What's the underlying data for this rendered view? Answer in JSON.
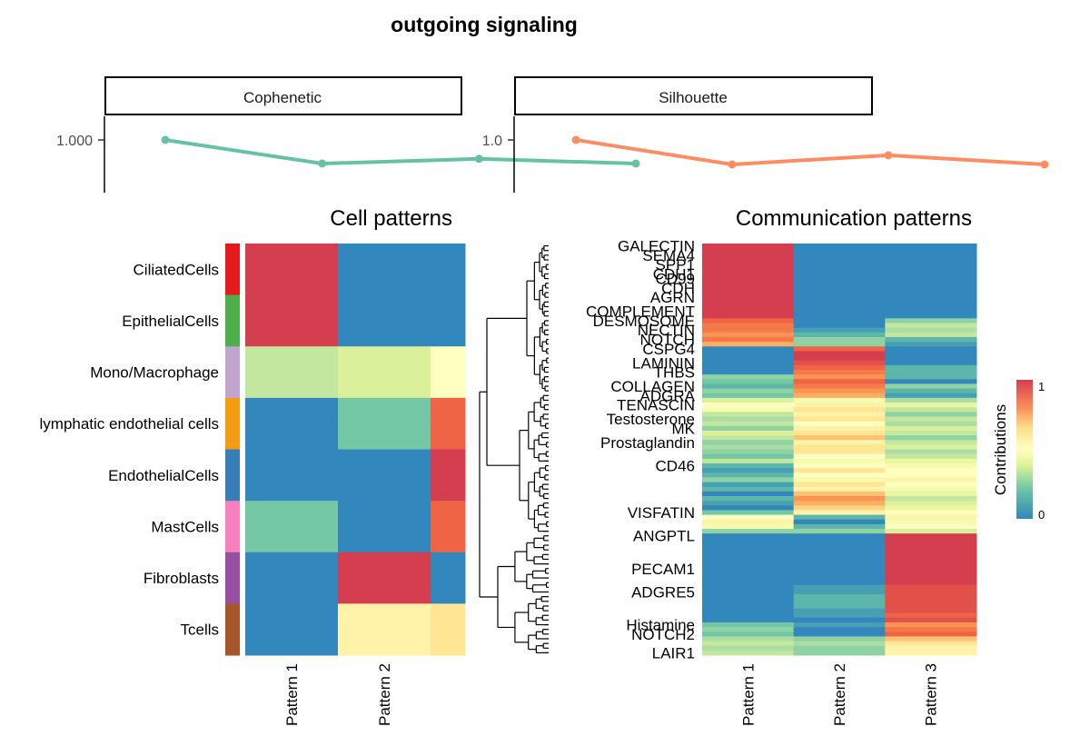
{
  "title": "outgoing signaling",
  "colors": {
    "cophenetic": "#66c2a5",
    "silhouette": "#fc8d62",
    "scale_low": "#3288bd",
    "scale_high": "#d53e4f"
  },
  "chart_data": [
    {
      "type": "line",
      "facet": "Cophenetic",
      "y_tick_labels": [
        "1.000"
      ],
      "points": [
        {
          "x": 2,
          "y": 1.0
        },
        {
          "x": 3,
          "y": 0.975
        },
        {
          "x": 4,
          "y": 0.98
        },
        {
          "x": 5,
          "y": 0.975
        }
      ]
    },
    {
      "type": "line",
      "facet": "Silhouette",
      "y_tick_labels": [
        "1.0"
      ],
      "points": [
        {
          "x": 2,
          "y": 1.0
        },
        {
          "x": 3,
          "y": 0.84
        },
        {
          "x": 4,
          "y": 0.9
        },
        {
          "x": 5,
          "y": 0.84
        }
      ]
    },
    {
      "type": "heatmap",
      "title": "Cell patterns",
      "rows": [
        "CiliatedCells",
        "EpithelialCells",
        "Mono/Macrophage",
        "lymphatic endothelial cells",
        "EndothelialCells",
        "MastCells",
        "Fibroblasts",
        "Tcells"
      ],
      "row_colors": [
        "#e41a1c",
        "#4daf4a",
        "#c2a5cf",
        "#f39c12",
        "#377eb8",
        "#f781bf",
        "#984ea3",
        "#a65628"
      ],
      "columns": [
        "Pattern 1",
        "Pattern 2",
        ""
      ],
      "values": [
        [
          1.0,
          0.0,
          0.0
        ],
        [
          1.0,
          0.0,
          0.0
        ],
        [
          0.3,
          0.35,
          0.5
        ],
        [
          0.0,
          0.15,
          0.9
        ],
        [
          0.0,
          0.0,
          1.0
        ],
        [
          0.15,
          0.0,
          0.9
        ],
        [
          0.0,
          1.0,
          0.0
        ],
        [
          0.0,
          0.55,
          0.6
        ]
      ]
    },
    {
      "type": "heatmap",
      "title": "Communication patterns",
      "columns": [
        "Pattern 1",
        "Pattern 2",
        "Pattern 3"
      ],
      "row_labels": [
        "GALECTIN",
        "SEMA4",
        "SPP1",
        "CDH1",
        "CD99",
        "CDH",
        "AGRN",
        "COMPLEMENT",
        "DESMOSOME",
        "NECTIN",
        "NOTCH",
        "CSPG4",
        "LAMININ",
        "THBS",
        "COLLAGEN",
        "ADGRA",
        "TENASCIN",
        "Testosterone",
        "MK",
        "Prostaglandin",
        "CD46",
        "VISFATIN",
        "ANGPTL",
        "PECAM1",
        "ADGRE5",
        "Histamine",
        "NOTCH2",
        "LAIR1"
      ],
      "row_label_positions": [
        0,
        2,
        4,
        6,
        7,
        9,
        11,
        14,
        16,
        18,
        20,
        22,
        25,
        27,
        30,
        32,
        34,
        37,
        39,
        42,
        47,
        57,
        62,
        69,
        74,
        81,
        83,
        87
      ],
      "values": [
        [
          1.0,
          0.0,
          0.0
        ],
        [
          1.0,
          0.0,
          0.0
        ],
        [
          1.0,
          0.0,
          0.0
        ],
        [
          1.0,
          0.0,
          0.0
        ],
        [
          1.0,
          0.0,
          0.0
        ],
        [
          1.0,
          0.0,
          0.0
        ],
        [
          1.0,
          0.0,
          0.0
        ],
        [
          1.0,
          0.0,
          0.0
        ],
        [
          1.0,
          0.0,
          0.0
        ],
        [
          1.0,
          0.0,
          0.0
        ],
        [
          1.0,
          0.0,
          0.0
        ],
        [
          1.0,
          0.0,
          0.0
        ],
        [
          1.0,
          0.0,
          0.0
        ],
        [
          1.0,
          0.0,
          0.0
        ],
        [
          1.0,
          0.0,
          0.0
        ],
        [
          1.0,
          0.0,
          0.0
        ],
        [
          0.9,
          0.0,
          0.2
        ],
        [
          0.85,
          0.0,
          0.3
        ],
        [
          0.85,
          0.05,
          0.25
        ],
        [
          0.8,
          0.1,
          0.3
        ],
        [
          0.85,
          0.2,
          0.1
        ],
        [
          0.75,
          0.2,
          0.05
        ],
        [
          0.0,
          0.9,
          0.0
        ],
        [
          0.0,
          1.0,
          0.0
        ],
        [
          0.0,
          1.0,
          0.0
        ],
        [
          0.0,
          0.95,
          0.0
        ],
        [
          0.0,
          0.9,
          0.1
        ],
        [
          0.0,
          0.85,
          0.1
        ],
        [
          0.2,
          0.8,
          0.1
        ],
        [
          0.15,
          0.9,
          0.0
        ],
        [
          0.1,
          0.85,
          0.2
        ],
        [
          0.2,
          0.8,
          0.1
        ],
        [
          0.15,
          0.75,
          0.05
        ],
        [
          0.35,
          0.45,
          0.25
        ],
        [
          0.5,
          0.55,
          0.4
        ],
        [
          0.45,
          0.6,
          0.3
        ],
        [
          0.3,
          0.55,
          0.2
        ],
        [
          0.25,
          0.6,
          0.3
        ],
        [
          0.3,
          0.5,
          0.25
        ],
        [
          0.2,
          0.55,
          0.35
        ],
        [
          0.35,
          0.6,
          0.3
        ],
        [
          0.3,
          0.7,
          0.2
        ],
        [
          0.2,
          0.55,
          0.3
        ],
        [
          0.25,
          0.6,
          0.35
        ],
        [
          0.2,
          0.6,
          0.25
        ],
        [
          0.15,
          0.5,
          0.3
        ],
        [
          0.3,
          0.45,
          0.4
        ],
        [
          0.1,
          0.5,
          0.45
        ],
        [
          0.05,
          0.6,
          0.5
        ],
        [
          0.1,
          0.5,
          0.5
        ],
        [
          0.2,
          0.45,
          0.55
        ],
        [
          0.05,
          0.6,
          0.5
        ],
        [
          0.1,
          0.55,
          0.45
        ],
        [
          0.0,
          0.7,
          0.4
        ],
        [
          0.1,
          0.8,
          0.3
        ],
        [
          0.05,
          0.75,
          0.35
        ],
        [
          0.0,
          0.65,
          0.4
        ],
        [
          0.15,
          0.55,
          0.5
        ],
        [
          0.5,
          0.1,
          0.55
        ],
        [
          0.55,
          0.0,
          0.45
        ],
        [
          0.45,
          0.1,
          0.5
        ],
        [
          0.2,
          0.2,
          0.35
        ],
        [
          0.0,
          0.0,
          1.0
        ],
        [
          0.0,
          0.0,
          1.0
        ],
        [
          0.0,
          0.0,
          1.0
        ],
        [
          0.0,
          0.0,
          1.0
        ],
        [
          0.0,
          0.0,
          1.0
        ],
        [
          0.0,
          0.0,
          1.0
        ],
        [
          0.0,
          0.0,
          1.0
        ],
        [
          0.0,
          0.0,
          1.0
        ],
        [
          0.0,
          0.0,
          1.0
        ],
        [
          0.0,
          0.0,
          1.0
        ],
        [
          0.0,
          0.0,
          1.0
        ],
        [
          0.0,
          0.05,
          0.95
        ],
        [
          0.0,
          0.05,
          0.95
        ],
        [
          0.0,
          0.1,
          0.95
        ],
        [
          0.0,
          0.1,
          0.95
        ],
        [
          0.0,
          0.1,
          0.95
        ],
        [
          0.0,
          0.05,
          0.95
        ],
        [
          0.0,
          0.05,
          0.9
        ],
        [
          0.0,
          0.0,
          0.95
        ],
        [
          0.15,
          0.05,
          0.8
        ],
        [
          0.2,
          0.0,
          0.85
        ],
        [
          0.15,
          0.0,
          0.9
        ],
        [
          0.25,
          0.2,
          0.7
        ],
        [
          0.3,
          0.25,
          0.6
        ],
        [
          0.25,
          0.2,
          0.55
        ],
        [
          0.3,
          0.2,
          0.55
        ]
      ],
      "legend": {
        "title": "Contributions",
        "ticks": [
          "1",
          "0"
        ]
      }
    }
  ]
}
